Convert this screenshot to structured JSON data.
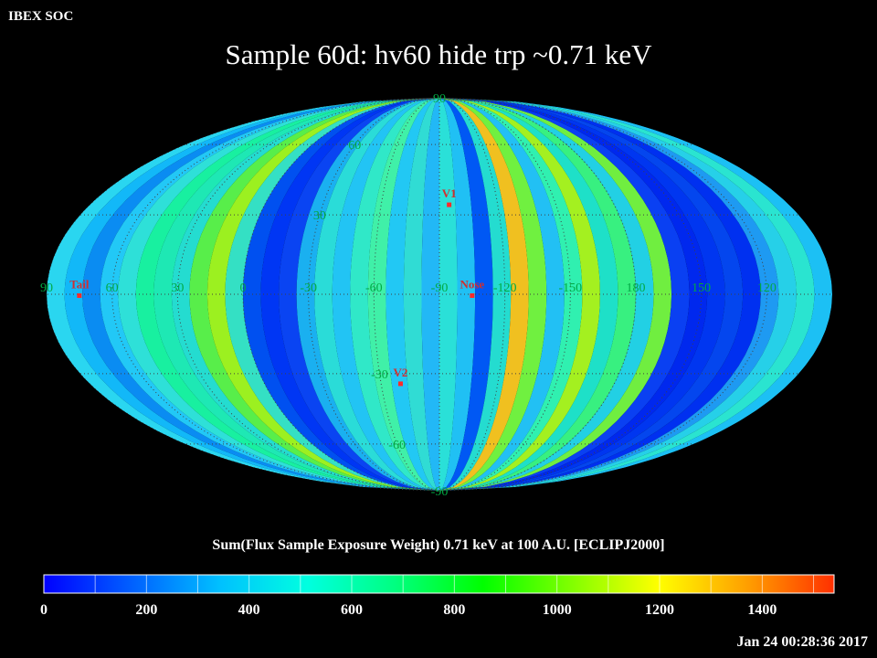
{
  "header": {
    "corner_label": "IBEX SOC",
    "title": "Sample 60d: hv60 hide trp ~0.71 keV"
  },
  "map": {
    "projection": "mollweide",
    "bands_from_left": [
      {
        "color": "#2ad6f0"
      },
      {
        "color": "#12b8f8"
      },
      {
        "color": "#0a8cf2"
      },
      {
        "color": "#22c8f6"
      },
      {
        "color": "#2ee0d8"
      },
      {
        "color": "#18f0a0"
      },
      {
        "color": "#1ee8b4"
      },
      {
        "color": "#24dcd0"
      },
      {
        "color": "#58ee4a"
      },
      {
        "color": "#9cf020"
      },
      {
        "color": "#34e0c4"
      },
      {
        "color": "#0050f0"
      },
      {
        "color": "#0036f4"
      },
      {
        "color": "#0a44f2"
      },
      {
        "color": "#1ab0f0"
      },
      {
        "color": "#2adcd8"
      },
      {
        "color": "#22c4f4"
      },
      {
        "color": "#30e8c8"
      },
      {
        "color": "#40f0a8"
      },
      {
        "color": "#22c8f4"
      },
      {
        "color": "#30dcd4"
      },
      {
        "color": "#22b8f6"
      },
      {
        "color": "#2ae0d8"
      },
      {
        "color": "#20c0f4"
      },
      {
        "color": "#0058f4"
      },
      {
        "color": "#24dcd0"
      },
      {
        "color": "#f0c020"
      },
      {
        "color": "#70f040"
      },
      {
        "color": "#22c0f4"
      },
      {
        "color": "#30f0b0"
      },
      {
        "color": "#a4f020"
      },
      {
        "color": "#1ee0c8"
      },
      {
        "color": "#38f080"
      },
      {
        "color": "#22d0e4"
      },
      {
        "color": "#70ee40"
      },
      {
        "color": "#0a40f2"
      },
      {
        "color": "#0028ee"
      },
      {
        "color": "#0036f0"
      },
      {
        "color": "#0446ee"
      },
      {
        "color": "#0030f0"
      },
      {
        "color": "#1e9af2"
      },
      {
        "color": "#26d0e8"
      },
      {
        "color": "#2ae4d0"
      },
      {
        "color": "#1cc0f4"
      }
    ],
    "latitude_labels": [
      "90",
      "60",
      "30",
      "-30",
      "-60",
      "-90"
    ],
    "longitude_labels": [
      "60",
      "30",
      "0",
      "-30",
      "-60",
      "-90",
      "-120",
      "-150",
      "180",
      "150",
      "120",
      "90"
    ],
    "markers": [
      {
        "label": "V1",
        "lon": -95,
        "lat": 34
      },
      {
        "label": "Nose",
        "lon": -105,
        "lat": -0.5
      },
      {
        "label": "V2",
        "lon": -70,
        "lat": -34
      },
      {
        "label": "Tail",
        "lon": 75,
        "lat": -0.5
      }
    ],
    "grid_color": "#404040",
    "marker_color": "#ff2a2a",
    "label_color": "#00aa44",
    "marker_label_color": "#d03030"
  },
  "colorbar": {
    "title": "Sum(Flux Sample Exposure Weight)  0.71 keV at 100 A.U. [ECLIPJ2000]",
    "min": 0,
    "max": 1540,
    "tick_labels": [
      "0",
      "200",
      "400",
      "600",
      "800",
      "1000",
      "1200",
      "1400"
    ],
    "tick_values": [
      0,
      200,
      400,
      600,
      800,
      1000,
      1200,
      1400
    ],
    "gradient_stops": [
      "#0000ff",
      "#0060ff",
      "#00c0ff",
      "#00ffe0",
      "#00ff80",
      "#00ff00",
      "#80ff00",
      "#ffff00",
      "#ffa000",
      "#ff3000"
    ]
  },
  "footer": {
    "timestamp": "Jan 24 00:28:36 2017"
  }
}
